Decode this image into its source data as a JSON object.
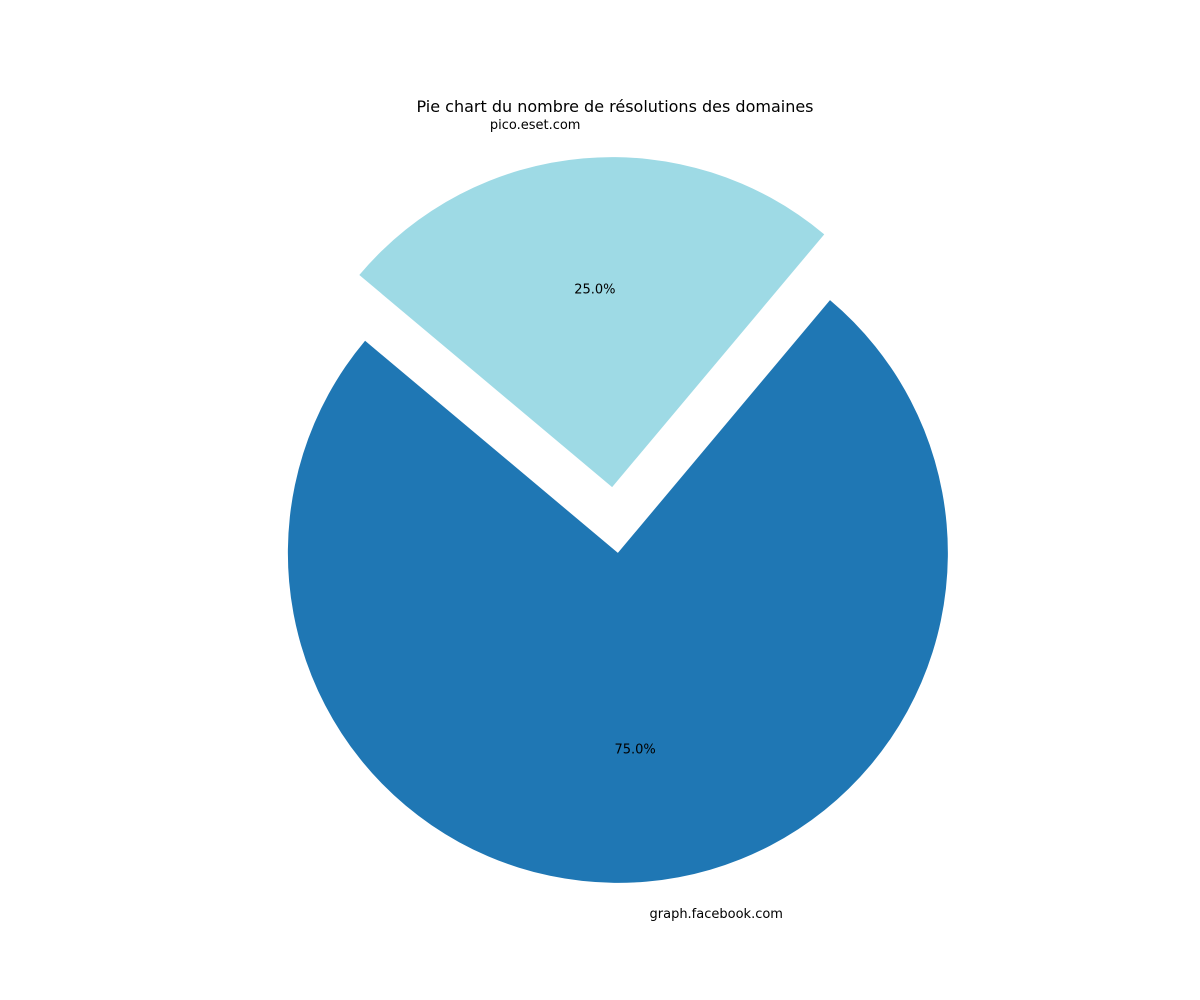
{
  "chart_data": {
    "type": "pie",
    "title": "Pie chart du nombre de résolutions des domaines",
    "labels": [
      "graph.facebook.com",
      "pico.eset.com"
    ],
    "values": [
      75.0,
      25.0
    ],
    "percent_labels": [
      "75.0%",
      "25.0%"
    ],
    "colors": [
      "#1f77b4",
      "#9edae5"
    ],
    "exploded": [
      "graph.facebook.com",
      "pico.eset.com"
    ],
    "legend": "none"
  }
}
